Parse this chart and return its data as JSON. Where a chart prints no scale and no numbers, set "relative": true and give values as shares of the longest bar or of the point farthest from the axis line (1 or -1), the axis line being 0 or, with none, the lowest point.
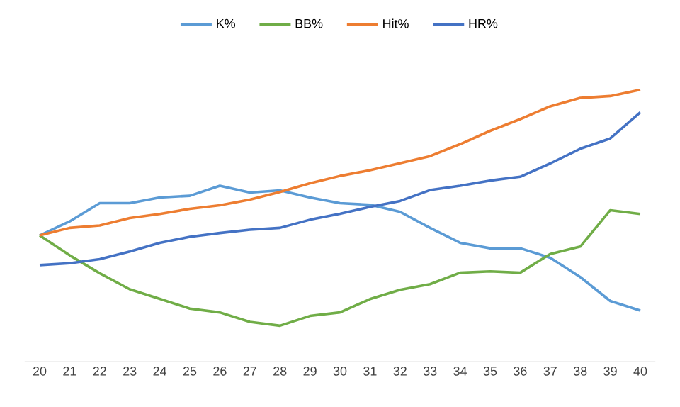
{
  "chart_data": {
    "type": "line",
    "relative": true,
    "legend": "top",
    "grid": false,
    "marker": "none",
    "line_style": "solid",
    "categories": [
      "20",
      "21",
      "22",
      "23",
      "24",
      "25",
      "26",
      "27",
      "28",
      "29",
      "30",
      "31",
      "32",
      "33",
      "34",
      "35",
      "36",
      "37",
      "38",
      "39",
      "40"
    ],
    "series": [
      {
        "name": "K%",
        "color": "#5b9bd5",
        "values": [
          0.464,
          0.516,
          0.583,
          0.583,
          0.604,
          0.61,
          0.647,
          0.622,
          0.63,
          0.604,
          0.583,
          0.577,
          0.551,
          0.492,
          0.437,
          0.417,
          0.417,
          0.382,
          0.311,
          0.223,
          0.188
        ]
      },
      {
        "name": "BB%",
        "color": "#70ad47",
        "values": [
          0.464,
          0.391,
          0.325,
          0.266,
          0.231,
          0.195,
          0.181,
          0.146,
          0.132,
          0.168,
          0.181,
          0.23,
          0.264,
          0.285,
          0.327,
          0.332,
          0.327,
          0.396,
          0.423,
          0.557,
          0.543
        ]
      },
      {
        "name": "Hit%",
        "color": "#ed7d31",
        "values": [
          0.464,
          0.492,
          0.501,
          0.528,
          0.543,
          0.562,
          0.575,
          0.596,
          0.624,
          0.656,
          0.683,
          0.704,
          0.73,
          0.756,
          0.8,
          0.849,
          0.892,
          0.939,
          0.97,
          0.977,
          1
        ]
      },
      {
        "name": "HR%",
        "color": "#4472c4",
        "values": [
          0.355,
          0.362,
          0.377,
          0.405,
          0.437,
          0.459,
          0.473,
          0.485,
          0.492,
          0.522,
          0.544,
          0.569,
          0.591,
          0.631,
          0.647,
          0.666,
          0.68,
          0.729,
          0.783,
          0.821,
          0.917
        ]
      }
    ]
  }
}
